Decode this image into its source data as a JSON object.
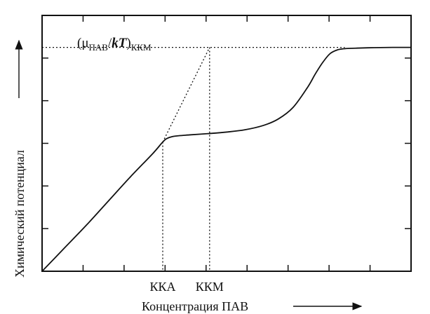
{
  "chart_data": {
    "type": "line",
    "xlabel": "Концентрация ПАВ",
    "ylabel": "Химический потенциал",
    "annotation": {
      "prefix": "(μ",
      "subscript": "ПАВ",
      "middle": "/",
      "italic": "kT",
      "close": ")",
      "subscript2": "ККМ"
    },
    "tick_labels": [
      {
        "x": 0.327,
        "label": "ККА"
      },
      {
        "x": 0.454,
        "label": "ККМ"
      }
    ],
    "xlim": [
      0,
      1
    ],
    "ylim": [
      0,
      1
    ],
    "grid": false,
    "series": [
      {
        "x": [
          0.0,
          0.06,
          0.12,
          0.18,
          0.24,
          0.3,
          0.327,
          0.34,
          0.36,
          0.4,
          0.45,
          0.5,
          0.55,
          0.6,
          0.64,
          0.68,
          0.72,
          0.74,
          0.76,
          0.78,
          0.8,
          0.82,
          0.85,
          0.9,
          0.95,
          1.0
        ],
        "y": [
          0.0,
          0.09,
          0.18,
          0.275,
          0.37,
          0.46,
          0.505,
          0.52,
          0.528,
          0.533,
          0.538,
          0.544,
          0.553,
          0.57,
          0.595,
          0.64,
          0.72,
          0.77,
          0.815,
          0.85,
          0.865,
          0.87,
          0.872,
          0.874,
          0.875,
          0.875
        ]
      }
    ],
    "guides": {
      "level_y": 0.875,
      "kka_x": 0.327,
      "kkm_x": 0.454
    }
  }
}
